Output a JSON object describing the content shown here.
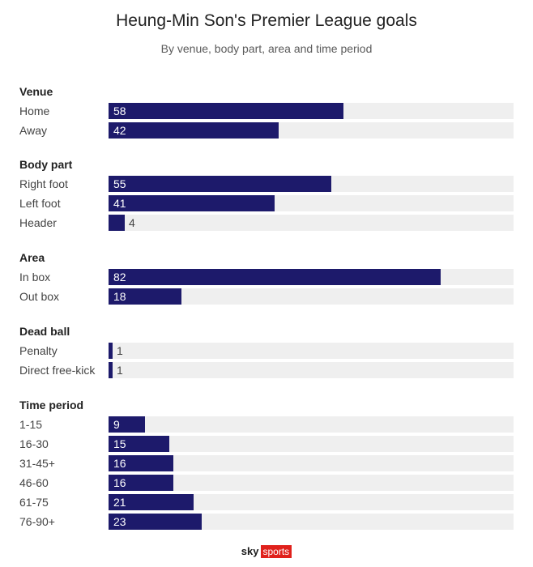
{
  "chart_data": {
    "type": "bar",
    "orientation": "horizontal",
    "title": "Heung-Min Son's Premier League goals",
    "subtitle": "By venue, body part, area and time period",
    "xlim": [
      0,
      100
    ],
    "bar_color": "#1d1a6b",
    "track_color": "#efefef",
    "groups": [
      {
        "name": "Venue",
        "categories": [
          "Home",
          "Away"
        ],
        "values": [
          58,
          42
        ]
      },
      {
        "name": "Body part",
        "categories": [
          "Right foot",
          "Left foot",
          "Header"
        ],
        "values": [
          55,
          41,
          4
        ]
      },
      {
        "name": "Area",
        "categories": [
          "In box",
          "Out box"
        ],
        "values": [
          82,
          18
        ]
      },
      {
        "name": "Dead ball",
        "categories": [
          "Penalty",
          "Direct free-kick"
        ],
        "values": [
          1,
          1
        ]
      },
      {
        "name": "Time period",
        "categories": [
          "1-15",
          "16-30",
          "31-45+",
          "46-60",
          "61-75",
          "76-90+"
        ],
        "values": [
          9,
          15,
          16,
          16,
          21,
          23
        ]
      }
    ]
  },
  "logo": {
    "sky": "sky",
    "sports": "sports",
    "accent": "#e0211c"
  }
}
